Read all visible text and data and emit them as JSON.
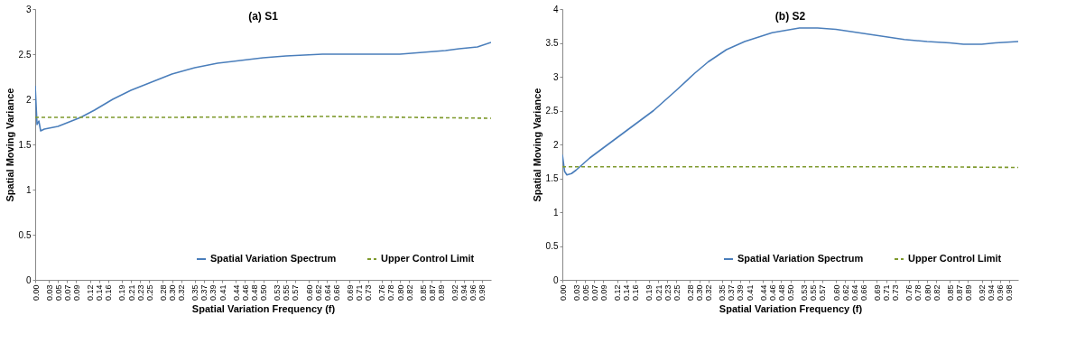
{
  "chart_data": [
    {
      "type": "line",
      "title": "(a) S1",
      "xlabel": "Spatial Variation Frequency (f)",
      "ylabel": "Spatial Moving Variance",
      "xlim": [
        0,
        1
      ],
      "xticks": [
        {
          "value": 0,
          "label": "0.00"
        },
        0.03,
        0.05,
        0.07,
        0.09,
        0.12,
        0.14,
        0.16,
        0.19,
        0.21,
        0.23,
        0.25,
        0.28,
        {
          "value": 0.3,
          "label": "0.30"
        },
        0.32,
        0.35,
        0.37,
        0.39,
        0.41,
        0.44,
        0.46,
        0.48,
        {
          "value": 0.5,
          "label": "0.50"
        },
        0.53,
        0.55,
        0.57,
        {
          "value": 0.6,
          "label": "0.60"
        },
        0.62,
        0.64,
        0.66,
        0.69,
        0.71,
        0.73,
        0.76,
        0.78,
        {
          "value": 0.8,
          "label": "0.80"
        },
        0.82,
        0.85,
        0.87,
        0.89,
        0.92,
        0.94,
        0.96,
        0.98
      ],
      "ylim": [
        0,
        3
      ],
      "yticks": [
        0,
        0.5,
        1,
        1.5,
        2,
        2.5,
        3
      ],
      "legend": "bottom right",
      "grid": false,
      "series": [
        {
          "name": "Spatial Variation Spectrum",
          "color": "#4a7ebb",
          "line_style": "solid",
          "x": [
            0,
            0.004,
            0.008,
            0.012,
            0.02,
            0.03,
            0.05,
            0.07,
            0.1,
            0.13,
            0.17,
            0.21,
            0.26,
            0.3,
            0.35,
            0.4,
            0.45,
            0.5,
            0.55,
            0.63,
            0.7,
            0.8,
            0.85,
            0.9,
            0.93,
            0.97,
            1
          ],
          "values": [
            2.15,
            1.72,
            1.76,
            1.65,
            1.67,
            1.68,
            1.7,
            1.74,
            1.8,
            1.88,
            2.0,
            2.1,
            2.2,
            2.28,
            2.35,
            2.4,
            2.43,
            2.46,
            2.48,
            2.5,
            2.5,
            2.5,
            2.52,
            2.54,
            2.56,
            2.58,
            2.63
          ]
        },
        {
          "name": "Upper Control Limit",
          "color": "#7f9a2e",
          "line_style": "dashed",
          "x": [
            0,
            0.3,
            0.64,
            1
          ],
          "values": [
            1.8,
            1.8,
            1.81,
            1.79
          ]
        }
      ]
    },
    {
      "type": "line",
      "title": "(b) S2",
      "xlabel": "Spatial Variation Frequency (f)",
      "ylabel": "Spatial Moving Variance",
      "xlim": [
        0,
        1
      ],
      "xticks": [
        {
          "value": 0,
          "label": "0.00"
        },
        0.03,
        0.05,
        0.07,
        0.09,
        0.12,
        0.14,
        0.16,
        0.19,
        0.21,
        0.23,
        0.25,
        0.28,
        {
          "value": 0.3,
          "label": "0.30"
        },
        0.32,
        0.35,
        0.37,
        0.39,
        0.41,
        0.44,
        0.46,
        0.48,
        {
          "value": 0.5,
          "label": "0.50"
        },
        0.53,
        0.55,
        0.57,
        {
          "value": 0.6,
          "label": "0.60"
        },
        0.62,
        0.64,
        0.66,
        0.69,
        0.71,
        0.73,
        0.76,
        0.78,
        {
          "value": 0.8,
          "label": "0.80"
        },
        0.82,
        0.85,
        0.87,
        0.89,
        0.92,
        0.94,
        0.96,
        0.98
      ],
      "ylim": [
        0,
        4
      ],
      "yticks": [
        0,
        0.5,
        1,
        1.5,
        2,
        2.5,
        3,
        3.5,
        4
      ],
      "legend": "bottom right",
      "grid": false,
      "series": [
        {
          "name": "Spatial Variation Spectrum",
          "color": "#4a7ebb",
          "line_style": "solid",
          "x": [
            0,
            0.005,
            0.01,
            0.02,
            0.03,
            0.06,
            0.1,
            0.14,
            0.17,
            0.2,
            0.25,
            0.29,
            0.32,
            0.36,
            0.4,
            0.46,
            0.52,
            0.56,
            0.6,
            0.65,
            0.7,
            0.75,
            0.8,
            0.85,
            0.88,
            0.92,
            0.95,
            1
          ],
          "values": [
            1.85,
            1.6,
            1.55,
            1.57,
            1.62,
            1.8,
            2.0,
            2.2,
            2.35,
            2.5,
            2.8,
            3.05,
            3.22,
            3.4,
            3.52,
            3.65,
            3.72,
            3.72,
            3.7,
            3.65,
            3.6,
            3.55,
            3.52,
            3.5,
            3.48,
            3.48,
            3.5,
            3.52
          ]
        },
        {
          "name": "Upper Control Limit",
          "color": "#7f9a2e",
          "line_style": "dashed",
          "x": [
            0,
            0.8,
            1
          ],
          "values": [
            1.67,
            1.67,
            1.66
          ]
        }
      ]
    }
  ]
}
